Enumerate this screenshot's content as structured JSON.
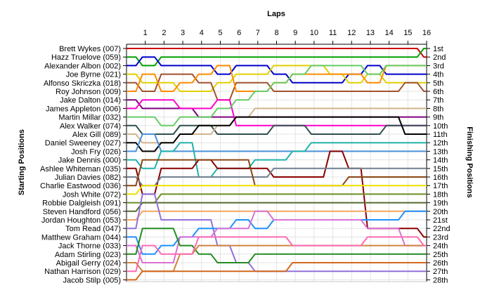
{
  "chart_data": {
    "type": "line",
    "title": "",
    "xlabel": "Laps",
    "ylabel_left": "Starting Positions",
    "ylabel_right": "Finishing Positions",
    "laps": [
      1,
      2,
      3,
      4,
      5,
      6,
      7,
      8,
      9,
      10,
      11,
      12,
      13,
      14,
      15,
      16
    ],
    "starting_positions": [
      "Brett Wykes (007)",
      "Hazz Truelove (059)",
      "Alexander Albon (002)",
      "Joe Byrne (021)",
      "Alfonso Skriczka (018)",
      "Roy Johnson (009)",
      "Jake Dalton (014)",
      "James Appleton (006)",
      "Martin Millar (032)",
      "Alex Walker (074)",
      "Alex Gill (089)",
      "Daniel Sweeney (027)",
      "Josh Fry (026)",
      "Jake Dennis (000)",
      "Ashlee Whiteman (035)",
      "Julian Davies (082)",
      "Charlie Eastwood (036)",
      "Josh White (072)",
      "Robbie Dalgleish (091)",
      "Steven Handford (056)",
      "Jordan Houghton (053)",
      "Tom Read (047)",
      "Matthew Graham (044)",
      "Jack Thorne (033)",
      "Adam Stirling (023)",
      "Abigail Gerry (024)",
      "Nathan Harrison (029)",
      "Jacob Stilp (005)"
    ],
    "finishing_positions": [
      "1st",
      "2nd",
      "3rd",
      "4th",
      "5th",
      "6th",
      "7th",
      "8th",
      "9th",
      "10th",
      "11th",
      "12th",
      "13th",
      "14th",
      "15th",
      "16th",
      "17th",
      "18th",
      "19th",
      "20th",
      "21st",
      "22nd",
      "23rd",
      "24th",
      "25th",
      "26th",
      "27th",
      "28th"
    ],
    "ylim": [
      1,
      28
    ],
    "grid": true,
    "series": [
      {
        "color": "#cc0000",
        "positions": [
          1,
          1,
          1,
          1,
          1,
          1,
          1,
          1,
          1,
          1,
          1,
          1,
          1,
          1,
          1,
          1,
          2
        ]
      },
      {
        "color": "#00a000",
        "positions": [
          2,
          3,
          2,
          2,
          2,
          2,
          2,
          2,
          2,
          2,
          2,
          2,
          2,
          2,
          2,
          2,
          1
        ]
      },
      {
        "color": "#0000cc",
        "positions": [
          3,
          2,
          3,
          3,
          3,
          4,
          3,
          3,
          4,
          5,
          5,
          5,
          4,
          3,
          4,
          4,
          4
        ]
      },
      {
        "color": "#e0d000",
        "positions": [
          4,
          5,
          5,
          6,
          6,
          5,
          4,
          4,
          3,
          3,
          3,
          4,
          5,
          4,
          5,
          5,
          5
        ]
      },
      {
        "color": "#a0522d",
        "positions": [
          5,
          6,
          4,
          4,
          5,
          7,
          5,
          5,
          6,
          6,
          6,
          6,
          6,
          6,
          6,
          5,
          6
        ]
      },
      {
        "color": "#ff8c00",
        "positions": [
          6,
          4,
          6,
          5,
          4,
          3,
          6,
          6,
          5,
          4,
          4,
          4,
          4,
          5,
          3,
          3,
          3
        ]
      },
      {
        "color": "#800080",
        "positions": [
          7,
          8,
          8,
          8,
          9,
          9,
          9,
          9,
          9,
          9,
          9,
          9,
          9,
          9,
          9,
          9,
          9
        ]
      },
      {
        "color": "#ff00cc",
        "positions": [
          8,
          7,
          7,
          8,
          8,
          7,
          10,
          10,
          10,
          10,
          10,
          10,
          10,
          10,
          10,
          10,
          10
        ]
      },
      {
        "color": "#66cc66",
        "positions": [
          9,
          9,
          10,
          9,
          9,
          8,
          7,
          6,
          5,
          4,
          3,
          3,
          3,
          4,
          3,
          3,
          3
        ]
      },
      {
        "color": "#2f4f4f",
        "positions": [
          10,
          11,
          11,
          10,
          10,
          11,
          11,
          11,
          10,
          10,
          11,
          11,
          11,
          11,
          10,
          10,
          10
        ]
      },
      {
        "color": "#d2b48c",
        "positions": [
          11,
          12,
          12,
          11,
          11,
          10,
          9,
          8,
          8,
          8,
          8,
          8,
          8,
          8,
          8,
          8,
          8
        ]
      },
      {
        "color": "#000000",
        "positions": [
          12,
          13,
          12,
          11,
          10,
          10,
          9,
          9,
          9,
          9,
          9,
          9,
          9,
          9,
          9,
          11,
          11
        ]
      },
      {
        "color": "#4a90d9",
        "positions": [
          13,
          11,
          13,
          13,
          13,
          13,
          13,
          13,
          13,
          13,
          13,
          13,
          13,
          13,
          13,
          13,
          13
        ]
      },
      {
        "color": "#20b2aa",
        "positions": [
          14,
          15,
          13,
          12,
          16,
          15,
          15,
          14,
          14,
          13,
          12,
          12,
          12,
          12,
          12,
          12,
          12
        ]
      },
      {
        "color": "#8b0000",
        "positions": [
          15,
          18,
          15,
          15,
          14,
          15,
          15,
          15,
          16,
          16,
          16,
          13,
          15,
          22,
          22,
          22,
          23
        ]
      },
      {
        "color": "#708090",
        "positions": [
          16,
          17,
          16,
          16,
          16,
          16,
          16,
          16,
          15,
          15,
          15,
          15,
          15,
          15,
          15,
          15,
          15
        ]
      },
      {
        "color": "#8b4513",
        "positions": [
          17,
          14,
          14,
          14,
          14,
          14,
          14,
          17,
          17,
          17,
          17,
          17,
          16,
          16,
          16,
          16,
          16
        ]
      },
      {
        "color": "#f0e000",
        "positions": [
          18,
          17,
          17,
          17,
          17,
          17,
          17,
          17,
          17,
          17,
          17,
          17,
          17,
          17,
          17,
          17,
          17
        ]
      },
      {
        "color": "#6b8e23",
        "positions": [
          19,
          19,
          18,
          18,
          18,
          18,
          18,
          18,
          18,
          18,
          18,
          18,
          18,
          18,
          18,
          18,
          18
        ]
      },
      {
        "color": "#556b2f",
        "positions": [
          20,
          19,
          19,
          19,
          19,
          19,
          19,
          19,
          19,
          19,
          19,
          19,
          19,
          19,
          19,
          19,
          19
        ]
      },
      {
        "color": "#f4a460",
        "positions": [
          21,
          20,
          20,
          20,
          20,
          20,
          20,
          20,
          20,
          20,
          20,
          20,
          20,
          20,
          20,
          20,
          20
        ]
      },
      {
        "color": "#9370db",
        "positions": [
          22,
          18,
          21,
          21,
          21,
          24,
          26,
          27,
          27,
          27,
          27,
          27,
          27,
          27,
          27,
          27,
          27
        ]
      },
      {
        "color": "#1e90ff",
        "positions": [
          23,
          25,
          24,
          23,
          22,
          22,
          21,
          22,
          21,
          21,
          21,
          21,
          21,
          21,
          21,
          20,
          20
        ]
      },
      {
        "color": "#da70d6",
        "positions": [
          24,
          26,
          26,
          23,
          23,
          22,
          22,
          20,
          21,
          21,
          21,
          21,
          21,
          22,
          22,
          24,
          24
        ]
      },
      {
        "color": "#228b22",
        "positions": [
          25,
          22,
          22,
          24,
          25,
          26,
          26,
          25,
          25,
          25,
          25,
          25,
          25,
          25,
          25,
          25,
          25
        ]
      },
      {
        "color": "#cd853f",
        "positions": [
          26,
          27,
          27,
          25,
          24,
          24,
          24,
          24,
          24,
          24,
          24,
          24,
          24,
          24,
          24,
          24,
          24
        ]
      },
      {
        "color": "#ff69b4",
        "positions": [
          27,
          24,
          25,
          25,
          23,
          23,
          23,
          23,
          23,
          24,
          24,
          24,
          24,
          23,
          23,
          23,
          24
        ]
      },
      {
        "color": "#d2691e",
        "positions": [
          28,
          27,
          27,
          27,
          27,
          27,
          27,
          27,
          27,
          26,
          26,
          26,
          26,
          26,
          26,
          26,
          26
        ]
      }
    ]
  }
}
